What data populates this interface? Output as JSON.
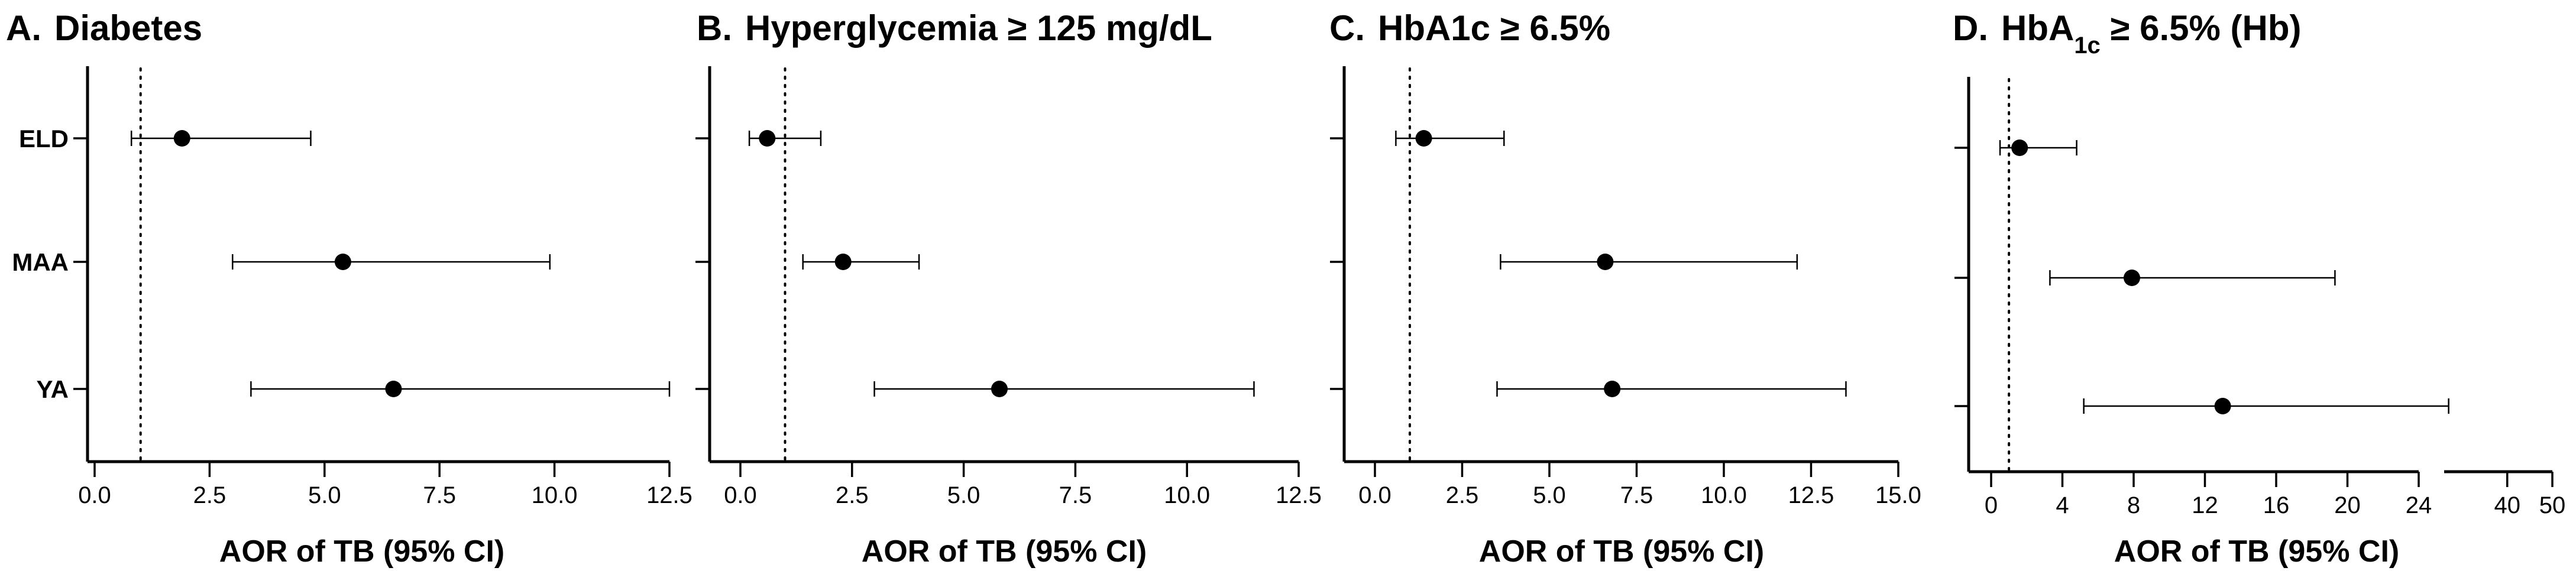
{
  "chart_data": [
    {
      "type": "forest",
      "panel_label": "A.",
      "title": "Diabetes",
      "title_sub": "",
      "title_suffix": "",
      "xlabel": "AOR of TB (95% CI)",
      "xlim": [
        0,
        12.5
      ],
      "xticks": [
        0.0,
        2.5,
        5.0,
        7.5,
        10.0,
        12.5
      ],
      "xtick_labels": [
        "0.0",
        "2.5",
        "5.0",
        "7.5",
        "10.0",
        "12.5"
      ],
      "reference_line": 1,
      "categories": [
        "ELD",
        "MAA",
        "YA"
      ],
      "show_category_labels": true,
      "estimates": [
        1.9,
        5.4,
        6.5
      ],
      "lower": [
        0.8,
        3.0,
        3.4
      ],
      "upper": [
        4.7,
        9.9,
        12.5
      ]
    },
    {
      "type": "forest",
      "panel_label": "B.",
      "title": "Hyperglycemia ≥ 125 mg/dL",
      "title_sub": "",
      "title_suffix": "",
      "xlabel": "AOR of TB (95% CI)",
      "xlim": [
        -0.5,
        12.5
      ],
      "xticks": [
        0.0,
        2.5,
        5.0,
        7.5,
        10.0,
        12.5
      ],
      "xtick_labels": [
        "0.0",
        "2.5",
        "5.0",
        "7.5",
        "10.0",
        "12.5"
      ],
      "reference_line": 1,
      "categories": [
        "ELD",
        "MAA",
        "YA"
      ],
      "show_category_labels": false,
      "estimates": [
        0.6,
        2.3,
        5.8
      ],
      "lower": [
        0.2,
        1.4,
        3.0
      ],
      "upper": [
        1.8,
        4.0,
        11.5
      ]
    },
    {
      "type": "forest",
      "panel_label": "C.",
      "title": "HbA1c ≥ 6.5%",
      "title_sub": "",
      "title_suffix": "",
      "xlabel": "AOR of TB (95% CI)",
      "xlim": [
        -0.5,
        15.0
      ],
      "xticks": [
        0.0,
        2.5,
        5.0,
        7.5,
        10.0,
        12.5,
        15.0
      ],
      "xtick_labels": [
        "0.0",
        "2.5",
        "5.0",
        "7.5",
        "10.0",
        "12.5",
        "15.0"
      ],
      "reference_line": 1,
      "categories": [
        "ELD",
        "MAA",
        "YA"
      ],
      "show_category_labels": false,
      "estimates": [
        1.4,
        6.6,
        6.8
      ],
      "lower": [
        0.6,
        3.6,
        3.5
      ],
      "upper": [
        3.7,
        12.1,
        13.5
      ]
    },
    {
      "type": "forest",
      "panel_label": "D.",
      "title": "HbA",
      "title_sub": "1c",
      "title_suffix": " ≥ 6.5% (Hb)",
      "xlabel": "AOR of TB (95% CI)",
      "xlim": [
        -1,
        50
      ],
      "axis_break": [
        24,
        26
      ],
      "xticks": [
        0,
        4,
        8,
        12,
        16,
        20,
        24,
        40,
        50
      ],
      "xtick_labels": [
        "0",
        "4",
        "8",
        "12",
        "16",
        "20",
        "24",
        "40",
        "50"
      ],
      "reference_line": 1,
      "categories": [
        "ELD",
        "MAA",
        "YA"
      ],
      "show_category_labels": false,
      "estimates": [
        1.6,
        7.9,
        13.0
      ],
      "lower": [
        0.5,
        3.3,
        5.2
      ],
      "upper": [
        4.8,
        19.3,
        27.0
      ]
    }
  ]
}
